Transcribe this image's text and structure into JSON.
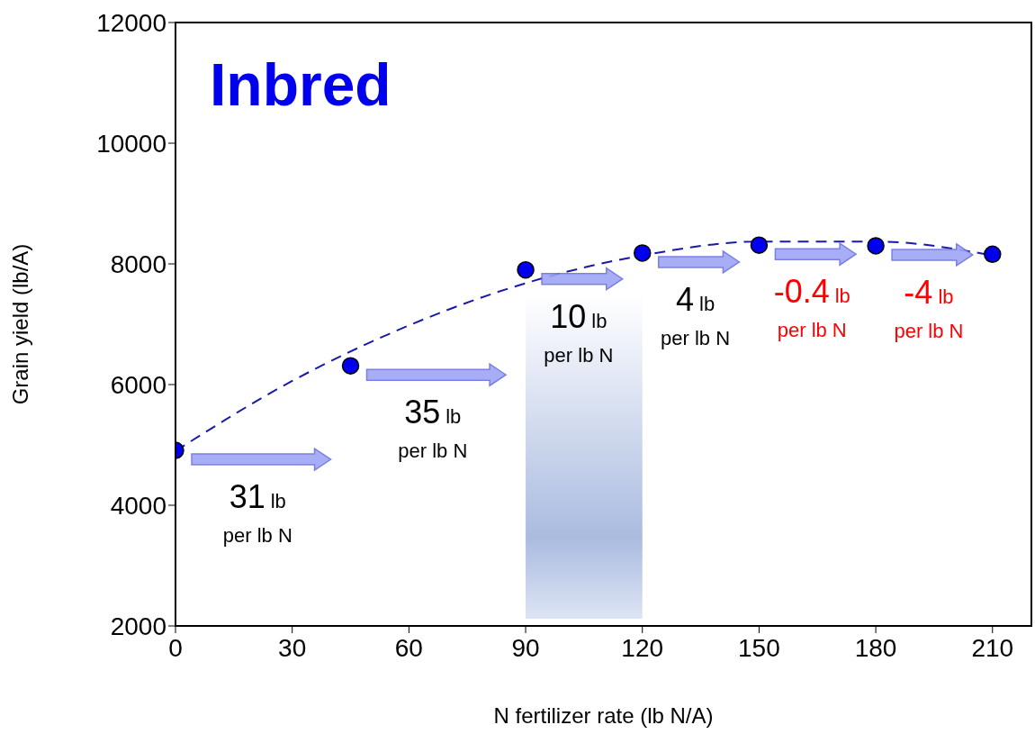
{
  "chart_data": {
    "type": "scatter",
    "title": "Inbred",
    "xlabel": "N fertilizer rate (lb N/A)",
    "ylabel": "Grain yield (lb/A)",
    "xlim": [
      0,
      220
    ],
    "xticks": [
      0,
      30,
      60,
      90,
      120,
      150,
      180,
      210
    ],
    "ylim": [
      2000,
      12000
    ],
    "yticks": [
      2000,
      4000,
      6000,
      8000,
      10000,
      12000
    ],
    "marker": "circle",
    "series": [
      {
        "color": "#0000ee",
        "x": [
          0,
          45,
          90,
          120,
          150,
          180,
          210
        ],
        "values": [
          4910,
          6310,
          7900,
          8180,
          8310,
          8300,
          8160
        ]
      },
      {
        "type": "line",
        "marker": "none",
        "color": "#1a1aa8",
        "line_style": "dashed",
        "x": [
          0,
          30,
          60,
          90,
          120,
          150,
          180,
          210
        ],
        "values": [
          4900,
          6060,
          6980,
          7680,
          8140,
          8370,
          8370,
          8140
        ]
      }
    ],
    "bands": [
      {
        "axis": "x",
        "from": 90,
        "to": 120,
        "color": "#aabbe0"
      }
    ],
    "annotations": [
      "31 lb per lb N",
      "35 lb per lb N",
      "10 lb per lb N",
      "4 lb per lb N",
      "-0.4 lb per lb N",
      "-4 lb per lb N"
    ]
  }
}
